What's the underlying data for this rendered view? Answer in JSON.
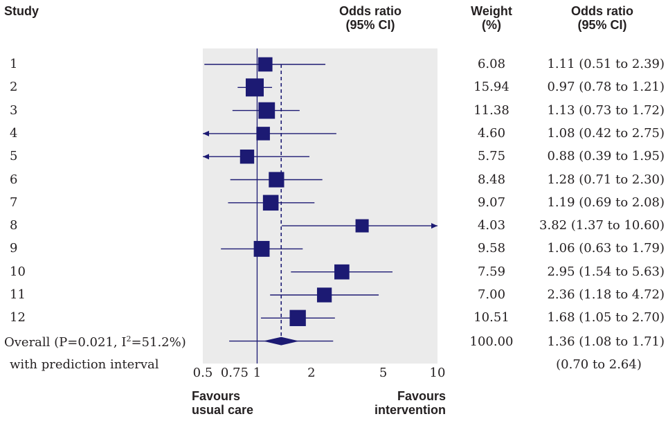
{
  "headers": {
    "study": "Study",
    "or_line1": "Odds ratio",
    "or_line2": "(95% CI)",
    "weight_line1": "Weight",
    "weight_line2": "(%)",
    "orci_line1": "Odds ratio",
    "orci_line2": "(95% CI)"
  },
  "footer": {
    "favours_left_line1": "Favours",
    "favours_left_line2": "usual care",
    "favours_right_line1": "Favours",
    "favours_right_line2": "intervention"
  },
  "colors": {
    "marker": "#1c1a73",
    "panel": "#ebebeb",
    "text": "#231f20"
  },
  "chart_data": {
    "type": "forest",
    "x_scale": "log",
    "x_ticks": [
      0.5,
      0.75,
      1,
      2,
      5,
      10
    ],
    "x_tick_labels": [
      "0.5",
      "0.75",
      "1",
      "2",
      "5",
      "10"
    ],
    "xlim": [
      0.5,
      10
    ],
    "reference_line": 1,
    "pooled_line": 1.36,
    "studies": [
      {
        "label": "1",
        "or": 1.11,
        "lo": 0.51,
        "hi": 2.39,
        "weight": "6.08",
        "ci_text": "1.11 (0.51 to 2.39)"
      },
      {
        "label": "2",
        "or": 0.97,
        "lo": 0.78,
        "hi": 1.21,
        "weight": "15.94",
        "ci_text": "0.97 (0.78 to 1.21)"
      },
      {
        "label": "3",
        "or": 1.13,
        "lo": 0.73,
        "hi": 1.72,
        "weight": "11.38",
        "ci_text": "1.13 (0.73 to 1.72)"
      },
      {
        "label": "4",
        "or": 1.08,
        "lo": 0.42,
        "hi": 2.75,
        "weight": "4.60",
        "ci_text": "1.08 (0.42 to 2.75)"
      },
      {
        "label": "5",
        "or": 0.88,
        "lo": 0.39,
        "hi": 1.95,
        "weight": "5.75",
        "ci_text": "0.88 (0.39 to 1.95)"
      },
      {
        "label": "6",
        "or": 1.28,
        "lo": 0.71,
        "hi": 2.3,
        "weight": "8.48",
        "ci_text": "1.28 (0.71 to 2.30)"
      },
      {
        "label": "7",
        "or": 1.19,
        "lo": 0.69,
        "hi": 2.08,
        "weight": "9.07",
        "ci_text": "1.19 (0.69 to 2.08)"
      },
      {
        "label": "8",
        "or": 3.82,
        "lo": 1.37,
        "hi": 10.6,
        "weight": "4.03",
        "ci_text": "3.82 (1.37 to 10.60)"
      },
      {
        "label": "9",
        "or": 1.06,
        "lo": 0.63,
        "hi": 1.79,
        "weight": "9.58",
        "ci_text": "1.06 (0.63 to 1.79)"
      },
      {
        "label": "10",
        "or": 2.95,
        "lo": 1.54,
        "hi": 5.63,
        "weight": "7.59",
        "ci_text": "2.95 (1.54 to 5.63)"
      },
      {
        "label": "11",
        "or": 2.36,
        "lo": 1.18,
        "hi": 4.72,
        "weight": "7.00",
        "ci_text": "2.36 (1.18 to 4.72)"
      },
      {
        "label": "12",
        "or": 1.68,
        "lo": 1.05,
        "hi": 2.7,
        "weight": "10.51",
        "ci_text": "1.68 (1.05 to 2.70)"
      }
    ],
    "overall": {
      "label_prefix": "Overall (P=0.021, I",
      "label_sup": "2",
      "label_suffix": "=51.2%)",
      "or": 1.36,
      "lo": 1.08,
      "hi": 1.71,
      "pi_lo": 0.7,
      "pi_hi": 2.64,
      "weight": "100.00",
      "ci_text": "1.36 (1.08 to 1.71)",
      "pi_label": "with prediction interval",
      "pi_text": "(0.70 to 2.64)"
    }
  }
}
